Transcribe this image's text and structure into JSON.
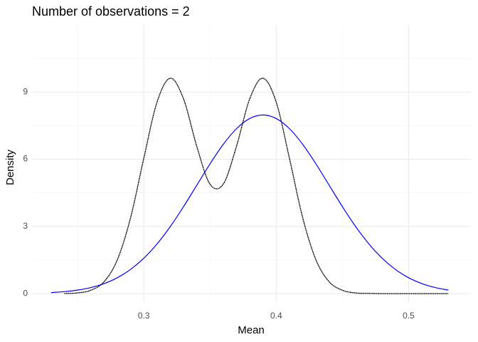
{
  "chart_data": {
    "type": "line",
    "title": "Number of observations = 2",
    "xlabel": "Mean",
    "ylabel": "Density",
    "x": [
      0.23,
      0.24,
      0.25,
      0.26,
      0.27,
      0.28,
      0.29,
      0.3,
      0.31,
      0.32,
      0.33,
      0.34,
      0.35,
      0.36,
      0.37,
      0.38,
      0.39,
      0.4,
      0.41,
      0.42,
      0.43,
      0.44,
      0.45,
      0.46,
      0.47,
      0.48,
      0.49,
      0.5,
      0.51,
      0.52,
      0.53
    ],
    "series": [
      {
        "color": "#000000",
        "values": [
          null,
          0.006,
          0.033,
          0.15,
          0.533,
          1.506,
          3.385,
          6.042,
          8.55,
          9.62,
          8.7,
          6.58,
          4.89,
          4.89,
          6.58,
          8.7,
          9.62,
          8.55,
          6.04,
          3.39,
          1.51,
          0.53,
          0.15,
          0.03,
          0.01,
          0,
          0,
          0,
          0,
          0,
          0
        ]
      },
      {
        "color": "#0000ff",
        "values": [
          0.048,
          0.089,
          0.158,
          0.272,
          0.448,
          0.71,
          1.08,
          1.579,
          2.218,
          2.995,
          3.884,
          4.839,
          5.794,
          6.665,
          7.366,
          7.821,
          7.979,
          7.821,
          7.366,
          6.665,
          5.794,
          4.839,
          3.884,
          2.995,
          2.218,
          1.579,
          1.08,
          0.71,
          0.448,
          0.272,
          0.158
        ]
      }
    ],
    "xlim": [
      0.2156,
      0.547
    ],
    "ylim": [
      -0.41,
      12.0
    ],
    "xticks": [
      0.3,
      0.4,
      0.5
    ],
    "yticks": [
      0,
      3,
      6,
      9
    ],
    "minor_xticks": [
      0.25,
      0.35,
      0.45
    ],
    "minor_yticks": [
      1.5,
      4.5,
      7.5,
      10.5
    ],
    "grid": true
  }
}
